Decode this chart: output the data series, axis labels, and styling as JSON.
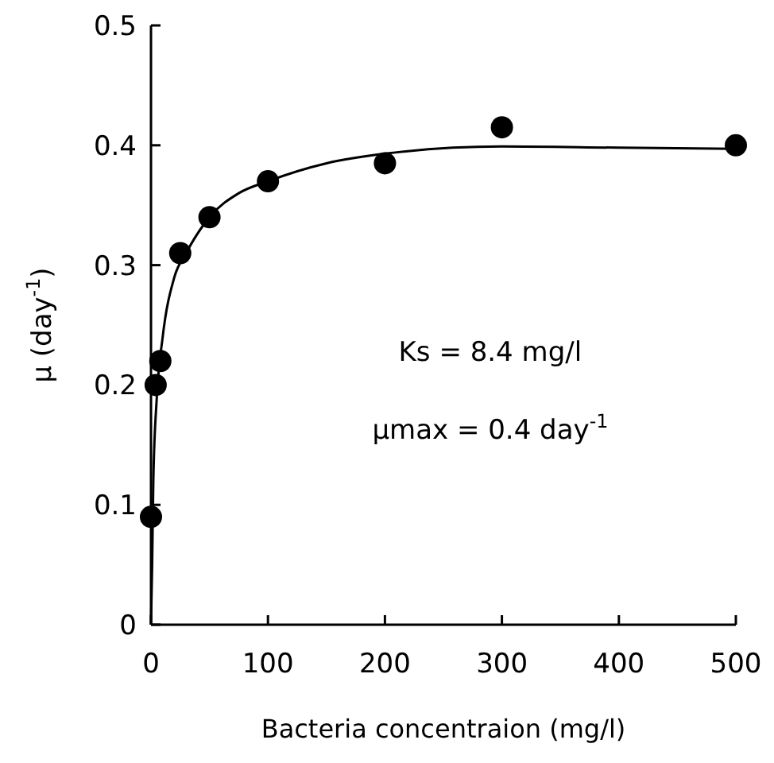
{
  "chart_data": {
    "type": "scatter",
    "xlabel": "Bacteria concentraion (mg/l)",
    "ylabel": "μ (day$^{-1}$)",
    "xlim": [
      0,
      500
    ],
    "xticks": [
      0,
      100,
      200,
      300,
      400,
      500
    ],
    "ylim": [
      0,
      0.5
    ],
    "yticks": [
      {
        "value": 0,
        "label": "0"
      },
      0.1,
      0.2,
      0.3,
      0.4,
      0.5
    ],
    "grid": false,
    "series": [
      {
        "color": "#000000",
        "marker": "circle",
        "x": [
          0,
          4,
          8,
          25,
          50,
          100,
          200,
          300,
          500
        ],
        "values": [
          0.09,
          0.2,
          0.22,
          0.31,
          0.34,
          0.37,
          0.385,
          0.415,
          0.4
        ]
      },
      {
        "type": "line",
        "color": "#000000",
        "marker": "none",
        "line_style": "solid",
        "x": [
          0,
          1,
          2,
          5,
          10,
          20,
          30,
          50,
          75,
          100,
          150,
          200,
          300,
          400,
          500
        ],
        "values": [
          0,
          0.05,
          0.12,
          0.19,
          0.24,
          0.29,
          0.31,
          0.34,
          0.36,
          0.37,
          0.385,
          0.393,
          0.399,
          0.398,
          0.397
        ]
      }
    ],
    "annotations": [
      "Ks = 8.4 mg/l",
      "μmax = 0.4 day$^{-1}$"
    ]
  }
}
